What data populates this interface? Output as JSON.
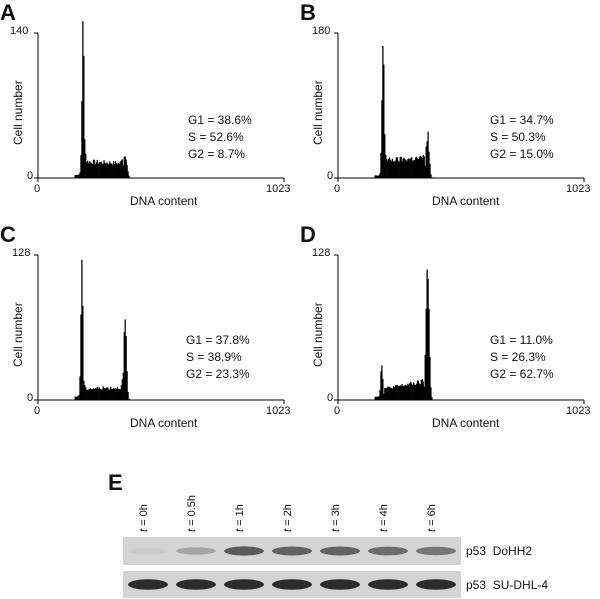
{
  "panels": [
    {
      "label": "A",
      "ymax": "140",
      "xmin": "0",
      "xmax": "1023",
      "ylabel": "Cell number",
      "xlabel": "DNA content",
      "g1": "G1 = 38.6%",
      "s": "S = 52.6%",
      "g2": "G2 = 8.7%"
    },
    {
      "label": "B",
      "ymax": "180",
      "xmin": "0",
      "xmax": "1023",
      "ylabel": "Cell number",
      "xlabel": "DNA content",
      "g1": "G1 = 34.7%",
      "s": "S = 50.3%",
      "g2": "G2 = 15.0%"
    },
    {
      "label": "C",
      "ymax": "128",
      "xmin": "0",
      "xmax": "1023",
      "ylabel": "Cell number",
      "xlabel": "DNA content",
      "g1": "G1 = 37.8%",
      "s": "S = 38.9%",
      "g2": "G2 = 23.3%"
    },
    {
      "label": "D",
      "ymax": "128",
      "xmin": "0",
      "xmax": "1023",
      "ylabel": "Cell number",
      "xlabel": "DNA content",
      "g1": "G1 = 11.0%",
      "s": "S = 26.3%",
      "g2": "G2 = 62.7%"
    }
  ],
  "blot": {
    "label": "E",
    "lanes": [
      {
        "t": "t",
        "rest": " = 0h"
      },
      {
        "t": "t",
        "rest": " = 0.5h"
      },
      {
        "t": "t",
        "rest": " = 1h"
      },
      {
        "t": "t",
        "rest": " = 2h"
      },
      {
        "t": "t",
        "rest": " = 3h"
      },
      {
        "t": "t",
        "rest": " = 4h"
      },
      {
        "t": "t",
        "rest": " = 6h"
      }
    ],
    "rows": [
      {
        "protein": "p53",
        "cell_line": "DoHH2",
        "intensities": [
          0.03,
          0.25,
          0.65,
          0.6,
          0.6,
          0.55,
          0.5
        ]
      },
      {
        "protein": "p53",
        "cell_line": "SU-DHL-4",
        "intensities": [
          0.9,
          0.9,
          0.9,
          0.9,
          0.9,
          0.9,
          0.9
        ]
      }
    ],
    "colors": {
      "band": "#1a1a1a",
      "background": "#d4d4d4"
    }
  },
  "chart_data": [
    {
      "type": "bar",
      "panel": "A",
      "xlabel": "DNA content",
      "ylabel": "Cell number",
      "xlim": [
        0,
        1023
      ],
      "ylim": [
        0,
        140
      ],
      "annotations": [
        "G1 = 38.6%",
        "S = 52.6%",
        "G2 = 8.7%"
      ],
      "peaks": [
        {
          "x": 185,
          "y": 140,
          "w": 10
        },
        {
          "x": 360,
          "y": 24,
          "w": 16
        }
      ],
      "s_plateau": {
        "from": 195,
        "to": 350,
        "level": 16,
        "end_level": 14
      }
    },
    {
      "type": "bar",
      "panel": "B",
      "xlabel": "DNA content",
      "ylabel": "Cell number",
      "xlim": [
        0,
        1023
      ],
      "ylim": [
        0,
        180
      ],
      "annotations": [
        "G1 = 34.7%",
        "S = 50.3%",
        "G2 = 15.0%"
      ],
      "peaks": [
        {
          "x": 185,
          "y": 178,
          "w": 10
        },
        {
          "x": 370,
          "y": 55,
          "w": 14
        }
      ],
      "s_plateau": {
        "from": 195,
        "to": 360,
        "level": 22,
        "end_level": 25
      }
    },
    {
      "type": "bar",
      "panel": "C",
      "xlabel": "DNA content",
      "ylabel": "Cell number",
      "xlim": [
        0,
        1023
      ],
      "ylim": [
        0,
        128
      ],
      "annotations": [
        "G1 = 37.8%",
        "S = 38.9%",
        "G2 = 23.3%"
      ],
      "peaks": [
        {
          "x": 180,
          "y": 125,
          "w": 9
        },
        {
          "x": 360,
          "y": 70,
          "w": 12
        }
      ],
      "s_plateau": {
        "from": 190,
        "to": 350,
        "level": 10,
        "end_level": 11
      }
    },
    {
      "type": "bar",
      "panel": "D",
      "xlabel": "DNA content",
      "ylabel": "Cell number",
      "xlim": [
        0,
        1023
      ],
      "ylim": [
        0,
        128
      ],
      "annotations": [
        "G1 = 11.0%",
        "S = 26.3%",
        "G2 = 62.7%"
      ],
      "peaks": [
        {
          "x": 180,
          "y": 30,
          "w": 10
        },
        {
          "x": 370,
          "y": 126,
          "w": 14
        }
      ],
      "s_plateau": {
        "from": 190,
        "to": 355,
        "level": 10,
        "end_level": 16
      }
    }
  ]
}
